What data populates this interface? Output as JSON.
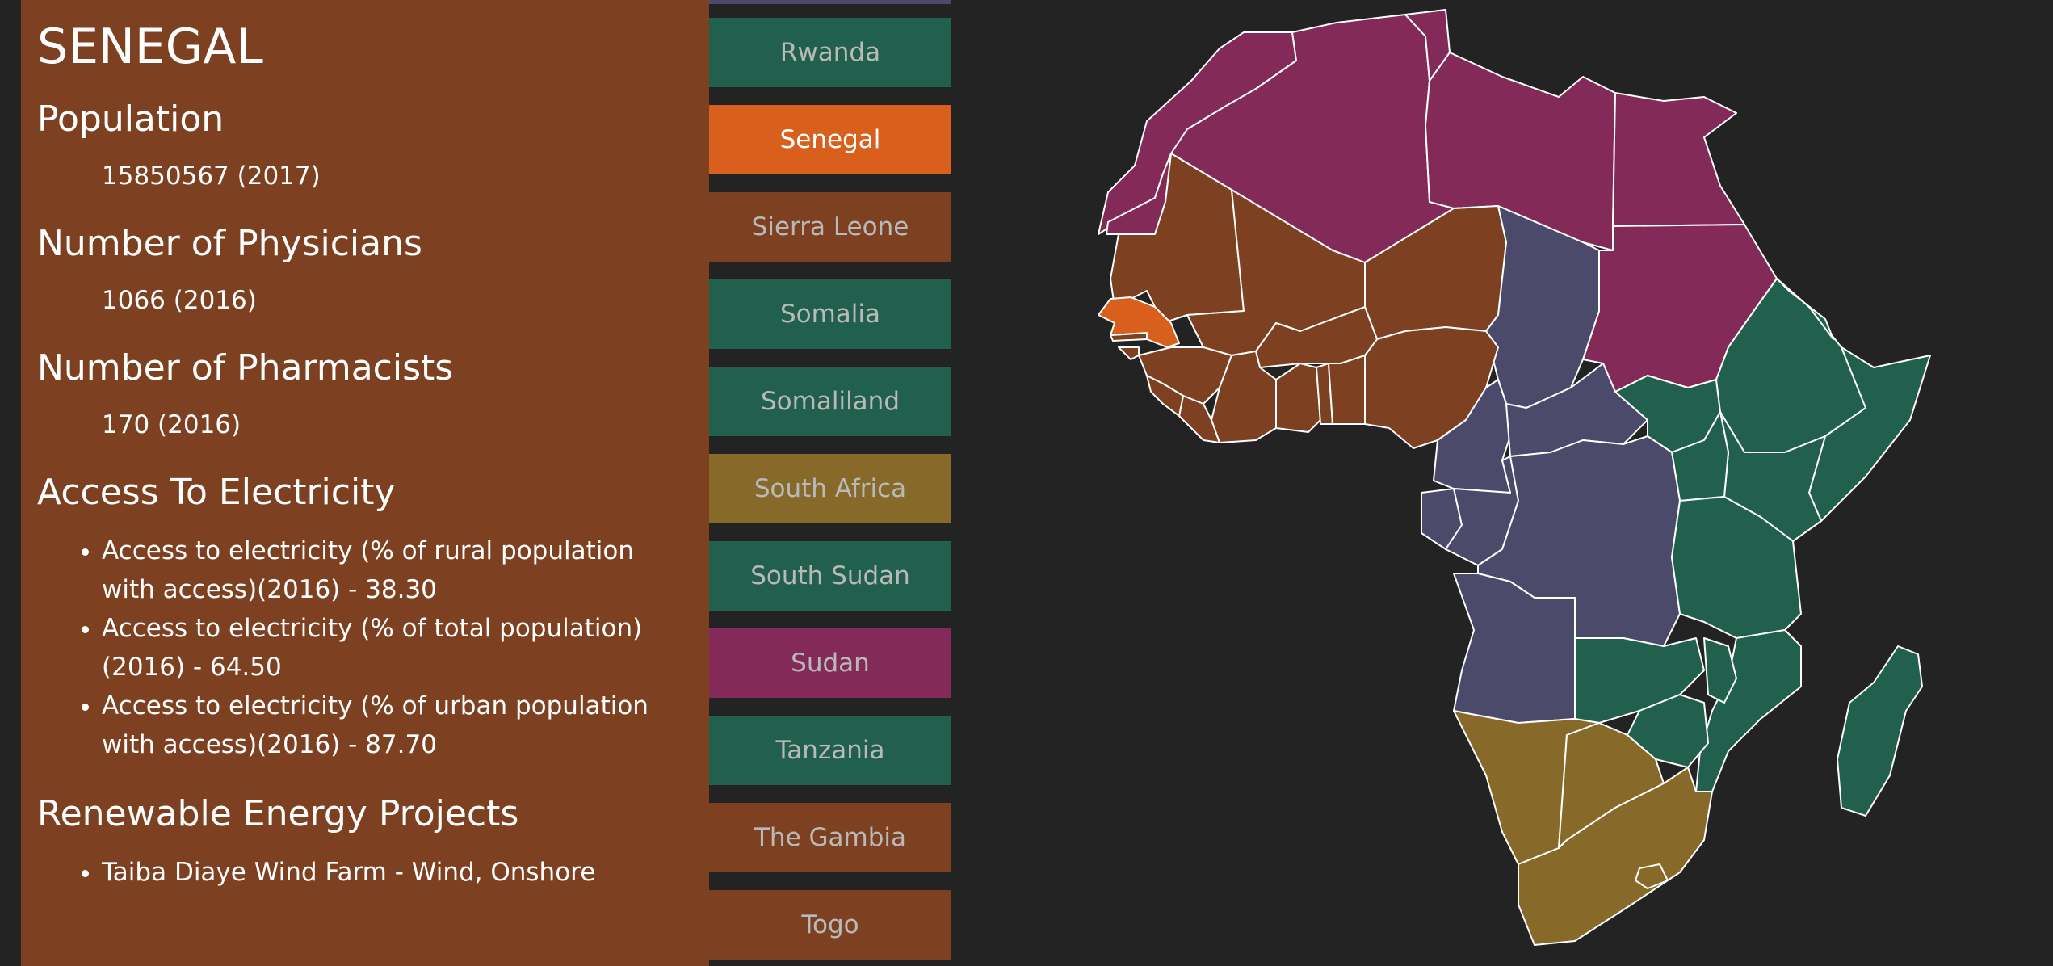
{
  "info": {
    "country_title": "SENEGAL",
    "population_heading": "Population",
    "population_value": "15850567 (2017)",
    "physicians_heading": "Number of Physicians",
    "physicians_value": "1066 (2016)",
    "pharmacists_heading": "Number of Pharmacists",
    "pharmacists_value": "170 (2016)",
    "electricity_heading": "Access To Electricity",
    "electricity_items": [
      "Access to electricity (% of rural population with access)(2016) - 38.30",
      "Access to electricity (% of total population)(2016) - 64.50",
      "Access to electricity (% of urban population with access)(2016) - 87.70"
    ],
    "renewables_heading": "Renewable Energy Projects",
    "renewables_items": [
      "Taiba Diaye Wind Farm - Wind, Onshore"
    ]
  },
  "country_list": [
    {
      "label": "Rwanda",
      "color": "#22604e",
      "active": false
    },
    {
      "label": "Senegal",
      "color": "#d9601c",
      "active": true
    },
    {
      "label": "Sierra Leone",
      "color": "#7d4020",
      "active": false
    },
    {
      "label": "Somalia",
      "color": "#22604e",
      "active": false
    },
    {
      "label": "Somaliland",
      "color": "#22604e",
      "active": false
    },
    {
      "label": "South Africa",
      "color": "#876a2a",
      "active": false
    },
    {
      "label": "South Sudan",
      "color": "#22604e",
      "active": false
    },
    {
      "label": "Sudan",
      "color": "#832a58",
      "active": false
    },
    {
      "label": "Tanzania",
      "color": "#22604e",
      "active": false
    },
    {
      "label": "The Gambia",
      "color": "#7d4020",
      "active": false
    },
    {
      "label": "Togo",
      "color": "#7d4020",
      "active": false
    }
  ],
  "regions": {
    "north": "#832a58",
    "west": "#7d4020",
    "central": "#4b4a6a",
    "east": "#22604e",
    "south": "#876a2a",
    "selected": "#d9601c"
  }
}
